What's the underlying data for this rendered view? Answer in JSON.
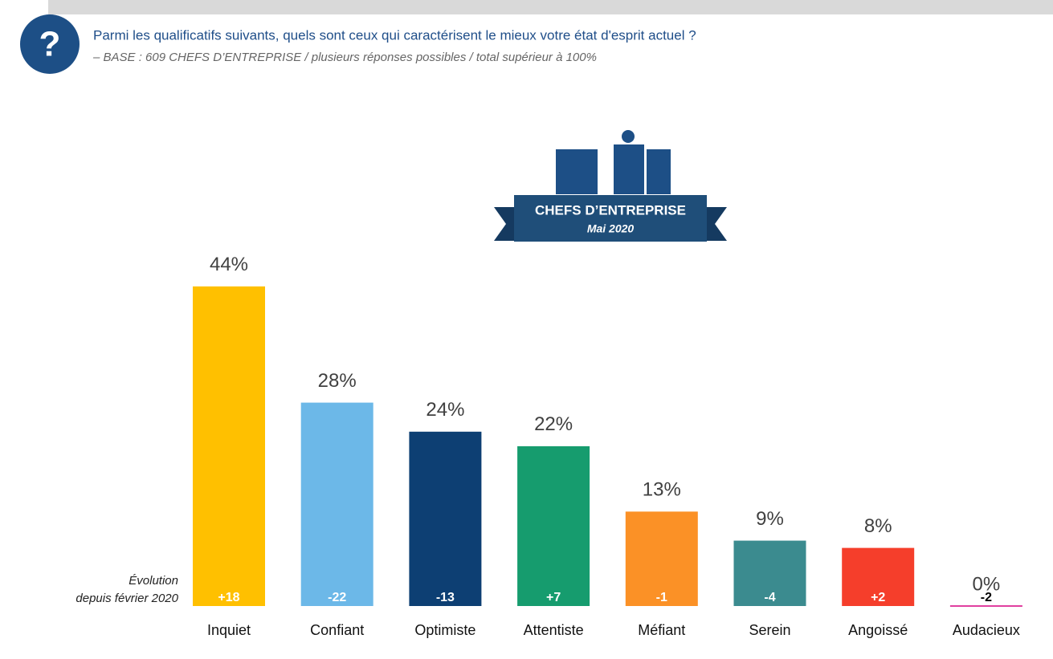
{
  "chart_data": {
    "type": "bar",
    "title": "Parmi les qualificatifs suivants, quels sont ceux qui caractérisent le mieux votre état d'esprit actuel ?",
    "subtitle": "– BASE : 609 CHEFS D’ENTREPRISE / plusieurs réponses possibles / total supérieur à 100%",
    "badge_title": "CHEFS D’ENTREPRISE",
    "badge_subtitle": "Mai 2020",
    "categories": [
      "Inquiet",
      "Confiant",
      "Optimiste",
      "Attentiste",
      "Méfiant",
      "Serein",
      "Angoissé",
      "Audacieux"
    ],
    "values": [
      44,
      28,
      24,
      22,
      13,
      9,
      8,
      0
    ],
    "value_labels": [
      "44%",
      "28%",
      "24%",
      "22%",
      "13%",
      "9%",
      "8%",
      "0%"
    ],
    "colors": [
      "#ffc000",
      "#6cb8e8",
      "#0d3f73",
      "#169c6e",
      "#fb9126",
      "#3b8b8f",
      "#f53e2b",
      "#e040a0"
    ],
    "evolution_caption": [
      "Évolution",
      "depuis février 2020"
    ],
    "evolution_labels": [
      "+18",
      "-22",
      "-13",
      "+7",
      "-1",
      "-4",
      "+2",
      "-2"
    ]
  }
}
